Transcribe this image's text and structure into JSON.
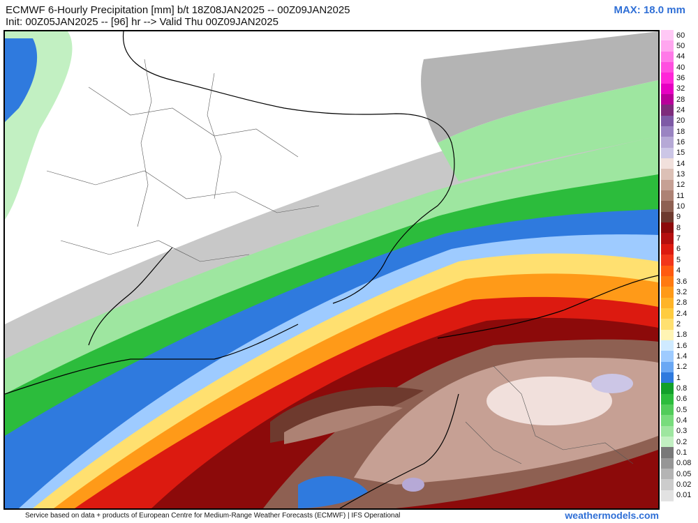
{
  "header": {
    "title_line1": "ECMWF 6-Hourly Precipitation [mm] b/t 18Z08JAN2025 -- 00Z09JAN2025",
    "title_line2": "Init: 00Z05JAN2025 -- [96] hr --> Valid Thu 00Z09JAN2025",
    "max_label": "MAX: 18.0 mm"
  },
  "legend": {
    "levels": [
      {
        "label": "60",
        "color": "#ffc8f5"
      },
      {
        "label": "50",
        "color": "#ffa6ef"
      },
      {
        "label": "44",
        "color": "#ff7ae8"
      },
      {
        "label": "40",
        "color": "#ff4fe0"
      },
      {
        "label": "36",
        "color": "#ff26d8"
      },
      {
        "label": "32",
        "color": "#e600c2"
      },
      {
        "label": "28",
        "color": "#b8009a"
      },
      {
        "label": "24",
        "color": "#7e2c7c"
      },
      {
        "label": "20",
        "color": "#7e5aa6"
      },
      {
        "label": "18",
        "color": "#9a84c2"
      },
      {
        "label": "16",
        "color": "#b6a9d6"
      },
      {
        "label": "15",
        "color": "#ccc6e6"
      },
      {
        "label": "14",
        "color": "#f1e0dc"
      },
      {
        "label": "13",
        "color": "#dcc0b6"
      },
      {
        "label": "12",
        "color": "#c6a094"
      },
      {
        "label": "11",
        "color": "#ad8274"
      },
      {
        "label": "10",
        "color": "#8e6052"
      },
      {
        "label": "9",
        "color": "#6e3a2e"
      },
      {
        "label": "8",
        "color": "#8c0a0a"
      },
      {
        "label": "7",
        "color": "#b40e0e"
      },
      {
        "label": "6",
        "color": "#dc1a10"
      },
      {
        "label": "5",
        "color": "#f2361a"
      },
      {
        "label": "4",
        "color": "#ff5a10"
      },
      {
        "label": "3.6",
        "color": "#ff7a10"
      },
      {
        "label": "3.2",
        "color": "#ff9a18"
      },
      {
        "label": "2.8",
        "color": "#ffb428"
      },
      {
        "label": "2.4",
        "color": "#ffcc40"
      },
      {
        "label": "2",
        "color": "#ffe070"
      },
      {
        "label": "1.8",
        "color": "#fff4b4"
      },
      {
        "label": "1.6",
        "color": "#cfeaff"
      },
      {
        "label": "1.4",
        "color": "#9ecbff"
      },
      {
        "label": "1.2",
        "color": "#6aa8f4"
      },
      {
        "label": "1",
        "color": "#2f7ade"
      },
      {
        "label": "0.8",
        "color": "#12a02a"
      },
      {
        "label": "0.6",
        "color": "#2cbc3c"
      },
      {
        "label": "0.5",
        "color": "#52cc5a"
      },
      {
        "label": "0.4",
        "color": "#78dc7c"
      },
      {
        "label": "0.3",
        "color": "#9ee6a0"
      },
      {
        "label": "0.2",
        "color": "#c2f0c2"
      },
      {
        "label": "0.1",
        "color": "#787878"
      },
      {
        "label": "0.08",
        "color": "#969696"
      },
      {
        "label": "0.05",
        "color": "#b4b4b4"
      },
      {
        "label": "0.02",
        "color": "#cccccc"
      },
      {
        "label": "0.01",
        "color": "#e2e2e2"
      }
    ]
  },
  "footer": {
    "credit": "Service based on data + products of European Centre for Medium-Range Weather Forecasts (ECMWF) | IFS Operational",
    "site": "weathermodels.com"
  }
}
